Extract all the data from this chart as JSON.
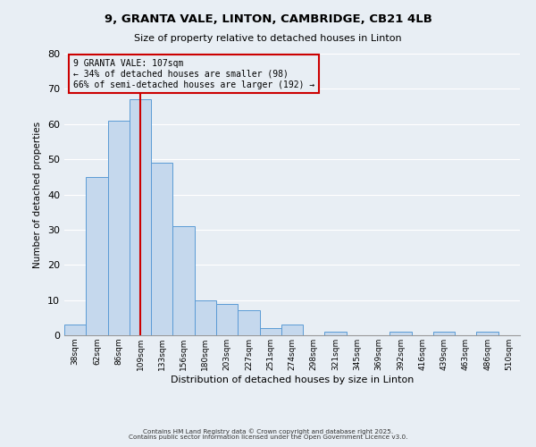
{
  "title": "9, GRANTA VALE, LINTON, CAMBRIDGE, CB21 4LB",
  "subtitle": "Size of property relative to detached houses in Linton",
  "xlabel": "Distribution of detached houses by size in Linton",
  "ylabel": "Number of detached properties",
  "footer_lines": [
    "Contains HM Land Registry data © Crown copyright and database right 2025.",
    "Contains public sector information licensed under the Open Government Licence v3.0."
  ],
  "bin_labels": [
    "38sqm",
    "62sqm",
    "86sqm",
    "109sqm",
    "133sqm",
    "156sqm",
    "180sqm",
    "203sqm",
    "227sqm",
    "251sqm",
    "274sqm",
    "298sqm",
    "321sqm",
    "345sqm",
    "369sqm",
    "392sqm",
    "416sqm",
    "439sqm",
    "463sqm",
    "486sqm",
    "510sqm"
  ],
  "bar_values": [
    3,
    45,
    61,
    67,
    49,
    31,
    10,
    9,
    7,
    2,
    3,
    0,
    1,
    0,
    0,
    1,
    0,
    1,
    0,
    1,
    0
  ],
  "bar_color": "#c5d8ed",
  "bar_edge_color": "#5b9bd5",
  "ylim": [
    0,
    80
  ],
  "yticks": [
    0,
    10,
    20,
    30,
    40,
    50,
    60,
    70,
    80
  ],
  "vline_x_index": 3,
  "vline_color": "#cc0000",
  "annotation_title": "9 GRANTA VALE: 107sqm",
  "annotation_line1": "← 34% of detached houses are smaller (98)",
  "annotation_line2": "66% of semi-detached houses are larger (192) →",
  "annotation_box_color": "#cc0000",
  "background_color": "#e8eef4"
}
